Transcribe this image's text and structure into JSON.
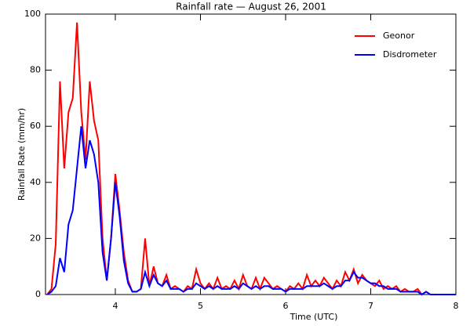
{
  "chart_data": {
    "type": "line",
    "title": "Rainfall rate — August 26, 2001",
    "xlabel": "Time (UTC)",
    "ylabel": "Rainfall Rate (mm/hr)",
    "x": [
      3.2,
      3.25,
      3.3,
      3.35,
      3.4,
      3.45,
      3.5,
      3.55,
      3.6,
      3.65,
      3.7,
      3.75,
      3.8,
      3.85,
      3.9,
      3.95,
      4.0,
      4.05,
      4.1,
      4.15,
      4.2,
      4.25,
      4.3,
      4.35,
      4.4,
      4.45,
      4.5,
      4.55,
      4.6,
      4.65,
      4.7,
      4.75,
      4.8,
      4.85,
      4.9,
      4.95,
      5.0,
      5.05,
      5.1,
      5.15,
      5.2,
      5.25,
      5.3,
      5.35,
      5.4,
      5.45,
      5.5,
      5.55,
      5.6,
      5.65,
      5.7,
      5.75,
      5.8,
      5.85,
      5.9,
      5.95,
      6.0,
      6.05,
      6.1,
      6.15,
      6.2,
      6.25,
      6.3,
      6.35,
      6.4,
      6.45,
      6.5,
      6.55,
      6.6,
      6.65,
      6.7,
      6.75,
      6.8,
      6.85,
      6.9,
      6.95,
      7.0,
      7.05,
      7.1,
      7.15,
      7.2,
      7.25,
      7.3,
      7.35,
      7.4,
      7.45,
      7.5,
      7.55,
      7.6,
      7.65,
      7.7,
      7.75,
      7.8,
      7.85,
      7.9,
      7.95,
      8.0
    ],
    "series": [
      {
        "name": "Geonor",
        "color": "#ff0000",
        "values": [
          0,
          2,
          18,
          76,
          45,
          65,
          70,
          97,
          65,
          48,
          76,
          62,
          55,
          20,
          5,
          20,
          43,
          30,
          15,
          5,
          1,
          1,
          2,
          20,
          3,
          10,
          4,
          3,
          7,
          2,
          3,
          2,
          1,
          3,
          2,
          9,
          4,
          2,
          4,
          2,
          6,
          2,
          3,
          2,
          5,
          2,
          7,
          3,
          2,
          6,
          2,
          6,
          4,
          2,
          3,
          2,
          1,
          3,
          2,
          4,
          2,
          7,
          3,
          5,
          3,
          6,
          4,
          2,
          5,
          3,
          8,
          5,
          9,
          4,
          7,
          5,
          4,
          3,
          5,
          2,
          3,
          2,
          3,
          1,
          2,
          1,
          1,
          2,
          0,
          1,
          0,
          0,
          0,
          0,
          0,
          0,
          0
        ]
      },
      {
        "name": "Disdrometer",
        "color": "#0000ff",
        "values": [
          0,
          1,
          3,
          13,
          8,
          25,
          30,
          45,
          60,
          45,
          55,
          50,
          40,
          15,
          5,
          20,
          40,
          28,
          12,
          4,
          1,
          1,
          2,
          8,
          3,
          7,
          4,
          3,
          5,
          2,
          2,
          2,
          1,
          2,
          2,
          4,
          3,
          2,
          3,
          2,
          3,
          2,
          2,
          2,
          3,
          2,
          4,
          3,
          2,
          3,
          2,
          3,
          3,
          2,
          2,
          2,
          1,
          2,
          2,
          2,
          2,
          3,
          3,
          3,
          3,
          4,
          3,
          2,
          3,
          3,
          5,
          5,
          8,
          6,
          6,
          5,
          4,
          4,
          3,
          3,
          2,
          2,
          2,
          1,
          1,
          1,
          1,
          1,
          0,
          1,
          0,
          0,
          0,
          0,
          0,
          0,
          0
        ]
      }
    ],
    "xlim": [
      3.18,
      8
    ],
    "xticks": [
      4,
      5,
      6,
      7,
      8
    ],
    "ylim": [
      0,
      100
    ],
    "yticks": [
      0,
      20,
      40,
      60,
      80,
      100
    ],
    "legend": "upper right"
  }
}
